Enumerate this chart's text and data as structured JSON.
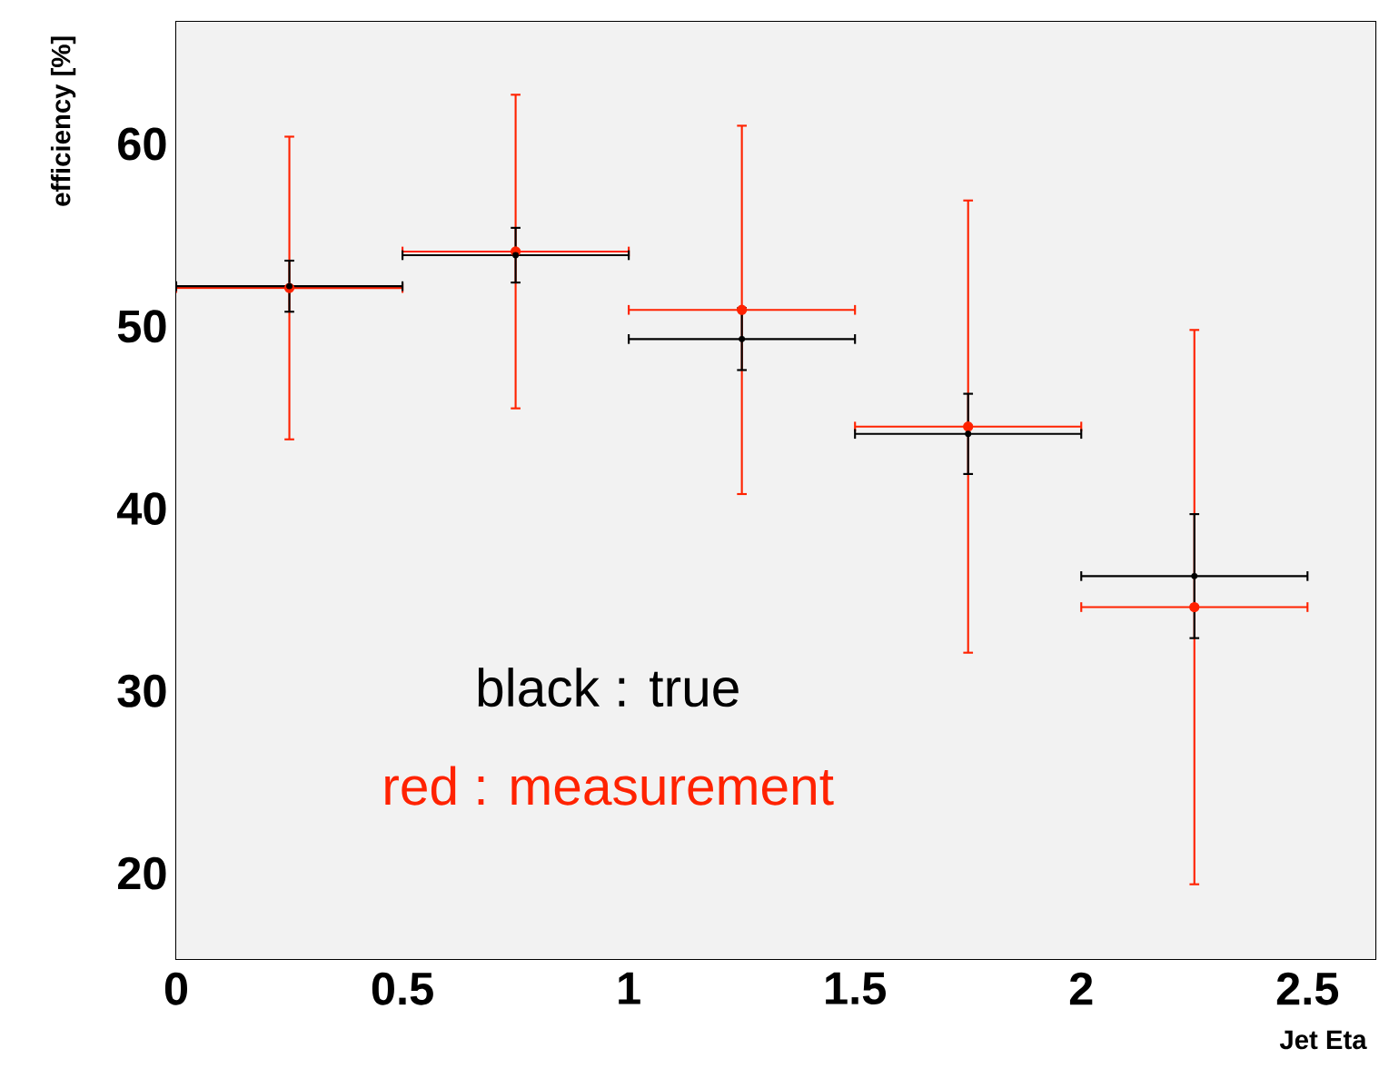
{
  "chart_data": {
    "type": "scatter",
    "xlabel": "Jet Eta",
    "ylabel": "efficiency [%]",
    "x": [
      0.25,
      0.75,
      1.25,
      1.75,
      2.25
    ],
    "series": [
      {
        "name": "black : true",
        "color": "#000000",
        "values": [
          52.2,
          53.9,
          49.3,
          44.1,
          36.3
        ],
        "errors": [
          1.4,
          1.5,
          1.7,
          2.2,
          3.4
        ],
        "xerrors": [
          0.25,
          0.25,
          0.25,
          0.25,
          0.25
        ]
      },
      {
        "name": "red : measurement",
        "color": "#ff2200",
        "values": [
          52.1,
          54.1,
          50.9,
          44.5,
          34.6
        ],
        "errors": [
          8.3,
          8.6,
          10.1,
          12.4,
          15.2
        ],
        "xerrors": [
          0.25,
          0.25,
          0.25,
          0.25,
          0.25
        ]
      }
    ],
    "xlim": [
      0,
      2.65
    ],
    "ylim": [
      15.3,
      66.7
    ],
    "xticks": [
      0,
      0.5,
      1,
      1.5,
      2,
      2.5
    ],
    "yticks": [
      20,
      30,
      40,
      50,
      60
    ],
    "marker": "circle"
  }
}
